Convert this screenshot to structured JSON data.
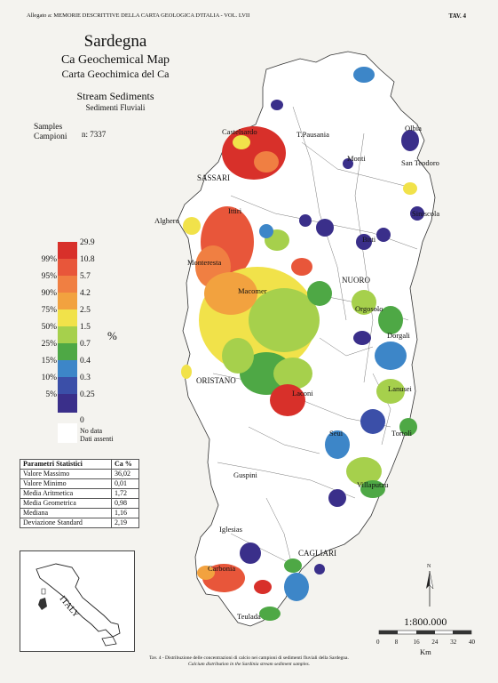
{
  "header": {
    "left": "Allegato a: MEMORIE DESCRITTIVE DELLA CARTA GEOLOGICA D'ITALIA - VOL. LVII",
    "right": "TAV. 4"
  },
  "title": {
    "region": "Sardegna",
    "map_en": "Ca Geochemical Map",
    "map_it": "Carta Geochimica del Ca",
    "media_en": "Stream Sediments",
    "media_it": "Sedimenti Fluviali",
    "samples_en": "Samples",
    "samples_it": "Campioni",
    "samples_n": "n: 7337"
  },
  "legend": {
    "unit": "%",
    "classes": [
      {
        "value": "29.9",
        "percentile": "",
        "color": "#d8302a"
      },
      {
        "value": "10.8",
        "percentile": "99%",
        "color": "#e8563a"
      },
      {
        "value": "5.7",
        "percentile": "95%",
        "color": "#f07f42"
      },
      {
        "value": "4.2",
        "percentile": "90%",
        "color": "#f2a23f"
      },
      {
        "value": "2.5",
        "percentile": "75%",
        "color": "#f1e24a"
      },
      {
        "value": "1.5",
        "percentile": "50%",
        "color": "#a6d04c"
      },
      {
        "value": "0.7",
        "percentile": "25%",
        "color": "#4ea845"
      },
      {
        "value": "0.4",
        "percentile": "15%",
        "color": "#3d86c8"
      },
      {
        "value": "0.3",
        "percentile": "10%",
        "color": "#3b4fa8"
      },
      {
        "value": "0.25",
        "percentile": "5%",
        "color": "#3a2f8a"
      }
    ],
    "min_value": "0",
    "nodata_en": "No data",
    "nodata_it": "Dati assenti"
  },
  "stats": {
    "header_param": "Parametri Statistici",
    "header_unit": "Ca  %",
    "rows": [
      {
        "label": "Valore Massimo",
        "value": "36,02"
      },
      {
        "label": "Valore Minimo",
        "value": "0,01"
      },
      {
        "label": "Media Aritmetica",
        "value": "1,72"
      },
      {
        "label": "Media Geometrica",
        "value": "0,98"
      },
      {
        "label": "Mediana",
        "value": "1,16"
      },
      {
        "label": "Deviazione Standard",
        "value": "2,19"
      }
    ]
  },
  "inset": {
    "label": "ITALY"
  },
  "places": {
    "castelsardo": "Castelsardo",
    "tpausania": "T.Pausania",
    "olbia": "Olbia",
    "monti": "Monti",
    "santeodoro": "San Teodoro",
    "sassari": "SASSARI",
    "alghero": "Alghero",
    "ittiri": "Ittiri",
    "siniscola": "Siniscola",
    "bitti": "Bitti",
    "monteresta": "Monteresta",
    "nuoro": "NUORO",
    "macomer": "Macomer",
    "orgosolo": "Orgosolo",
    "dorgali": "Dorgali",
    "oristano": "ORISTANO",
    "laconi": "Laconi",
    "lanusei": "Lanusei",
    "seui": "Seui",
    "tortoli": "Tortolì",
    "guspini": "Guspini",
    "villaputzu": "Villaputzu",
    "iglesias": "Iglesias",
    "cagliari": "CAGLIARI",
    "carbonia": "Carbonia",
    "teulada": "Teulada"
  },
  "scale": {
    "ratio": "1:800.000",
    "ticks": [
      "0",
      "8",
      "16",
      "24",
      "32",
      "40"
    ],
    "unit": "Km"
  },
  "north": "N",
  "caption": {
    "it": "Tav. 4 - Distribuzione delle concentrazioni di calcio nei campioni di sedimenti fluviali della Sardegna.",
    "en": "Calcium distribution in the Sardinia stream sediment samples."
  }
}
